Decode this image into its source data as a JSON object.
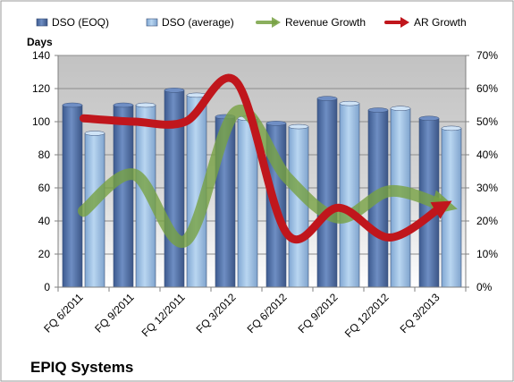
{
  "chart_data": {
    "type": "bar",
    "company": "EPIQ Systems",
    "y_left_label": "Days",
    "categories": [
      "FQ 6/2011",
      "FQ 9/2011",
      "FQ 12/2011",
      "FQ 3/2012",
      "FQ 6/2012",
      "FQ 9/2012",
      "FQ 12/2012",
      "FQ 3/2013"
    ],
    "y_left_ticks": [
      "0",
      "20",
      "40",
      "60",
      "80",
      "100",
      "120",
      "140"
    ],
    "y_right_ticks": [
      "0%",
      "10%",
      "20%",
      "30%",
      "40%",
      "50%",
      "60%",
      "70%"
    ],
    "ylim_left": [
      0,
      140
    ],
    "ylim_right": [
      0,
      0.7
    ],
    "grid": true,
    "legend_position": "top",
    "series": [
      {
        "name": "DSO (EOQ)",
        "kind": "bar",
        "axis": "left",
        "color": "#4f6fa6",
        "values": [
          110,
          110,
          119,
          103,
          99,
          114,
          107,
          102
        ]
      },
      {
        "name": "DSO (average)",
        "kind": "bar",
        "axis": "left",
        "color": "#9fc3e7",
        "values": [
          93,
          110,
          116,
          102,
          97,
          111,
          108,
          96
        ]
      },
      {
        "name": "Revenue Growth",
        "kind": "line",
        "axis": "right",
        "color": "#77a142",
        "values": [
          0.23,
          0.34,
          0.14,
          0.53,
          0.33,
          0.21,
          0.29,
          0.25
        ]
      },
      {
        "name": "AR Growth",
        "kind": "line",
        "axis": "right",
        "color": "#c0161c",
        "values": [
          0.51,
          0.5,
          0.5,
          0.62,
          0.16,
          0.24,
          0.15,
          0.24
        ]
      }
    ]
  }
}
